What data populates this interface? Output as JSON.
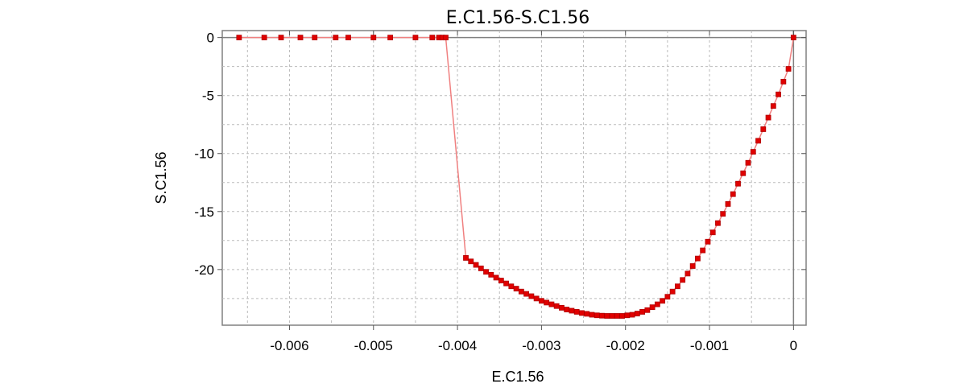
{
  "chart_data": {
    "type": "line",
    "title": "E.C1.56-S.C1.56",
    "xlabel": "E.C1.56",
    "ylabel": "S.C1.56",
    "xlim": [
      -0.0068,
      0.00015
    ],
    "ylim": [
      -24.8,
      0.6
    ],
    "xticks": [
      -0.006,
      -0.005,
      -0.004,
      -0.003,
      -0.002,
      -0.001,
      0
    ],
    "xtick_labels": [
      "-0.006",
      "-0.005",
      "-0.004",
      "-0.003",
      "-0.002",
      "-0.001",
      "0"
    ],
    "yticks": [
      0,
      -5,
      -10,
      -15,
      -20
    ],
    "ytick_labels": [
      "0",
      "-5",
      "-10",
      "-15",
      "-20"
    ],
    "grid": true,
    "line_color": "#f08080",
    "marker_color": "#e00000",
    "series": [
      {
        "x": [
          -0.0066,
          -0.0063,
          -0.0061,
          -0.00587,
          -0.0057,
          -0.00545,
          -0.0053,
          -0.005,
          -0.0048,
          -0.0045,
          -0.0043,
          -0.00422,
          -0.00418,
          -0.00414,
          -0.0039,
          -0.00384,
          -0.00378,
          -0.00372,
          -0.00366,
          -0.0036,
          -0.00354,
          -0.00348,
          -0.00342,
          -0.00336,
          -0.0033,
          -0.00324,
          -0.00318,
          -0.00312,
          -0.00306,
          -0.003,
          -0.00294,
          -0.00288,
          -0.00282,
          -0.00276,
          -0.0027,
          -0.00264,
          -0.00258,
          -0.00252,
          -0.00246,
          -0.0024,
          -0.00234,
          -0.00228,
          -0.00222,
          -0.00216,
          -0.0021,
          -0.00204,
          -0.00198,
          -0.00192,
          -0.00186,
          -0.0018,
          -0.00174,
          -0.00168,
          -0.00162,
          -0.00156,
          -0.0015,
          -0.00144,
          -0.00138,
          -0.00132,
          -0.00126,
          -0.0012,
          -0.00114,
          -0.00108,
          -0.00102,
          -0.00096,
          -0.0009,
          -0.00084,
          -0.00078,
          -0.00072,
          -0.00066,
          -0.0006,
          -0.00054,
          -0.00048,
          -0.00042,
          -0.00036,
          -0.0003,
          -0.00024,
          -0.00018,
          -0.00012,
          -6e-05,
          0
        ],
        "y": [
          0,
          0,
          0,
          0,
          0,
          0,
          0,
          0,
          0,
          0,
          0,
          0,
          0,
          0,
          -19.0,
          -19.3,
          -19.6,
          -19.9,
          -20.2,
          -20.45,
          -20.7,
          -20.95,
          -21.2,
          -21.45,
          -21.65,
          -21.9,
          -22.1,
          -22.3,
          -22.5,
          -22.7,
          -22.85,
          -23.0,
          -23.15,
          -23.3,
          -23.45,
          -23.55,
          -23.65,
          -23.75,
          -23.82,
          -23.9,
          -23.95,
          -23.98,
          -24.0,
          -24.0,
          -24.0,
          -24.0,
          -23.95,
          -23.9,
          -23.8,
          -23.65,
          -23.5,
          -23.25,
          -23.0,
          -22.7,
          -22.35,
          -21.9,
          -21.45,
          -20.9,
          -20.35,
          -19.7,
          -19.05,
          -18.35,
          -17.6,
          -16.8,
          -16.0,
          -15.2,
          -14.35,
          -13.5,
          -12.6,
          -11.7,
          -10.8,
          -9.85,
          -8.9,
          -7.9,
          -6.9,
          -5.9,
          -4.9,
          -3.8,
          -2.7,
          0
        ]
      }
    ]
  }
}
